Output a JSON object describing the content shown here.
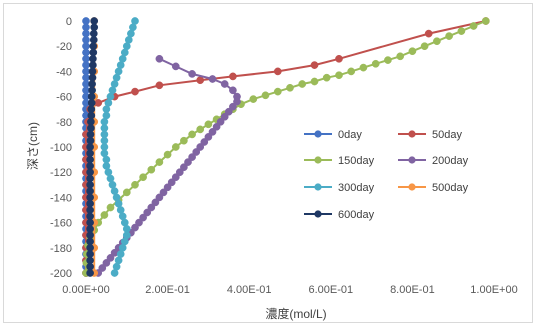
{
  "chart_data": {
    "type": "scatter",
    "xlabel": "濃度(mol/L)",
    "ylabel": "深さ(cm)",
    "xlim": [
      0,
      1.0
    ],
    "ylim": [
      -200,
      0
    ],
    "x_ticks": [
      "0.00E+00",
      "2.00E-01",
      "4.00E-01",
      "6.00E-01",
      "8.00E-01",
      "1.00E+00"
    ],
    "y_ticks": [
      "0",
      "-20",
      "-40",
      "-60",
      "-80",
      "-100",
      "-120",
      "-140",
      "-160",
      "-180",
      "-200"
    ],
    "grid": false,
    "legend_position": "right",
    "series": [
      {
        "name": "0day",
        "color": "#4472c4",
        "points": [
          [
            0,
            0
          ],
          [
            0,
            -5
          ],
          [
            0,
            -10
          ],
          [
            0,
            -15
          ],
          [
            0,
            -20
          ],
          [
            0,
            -25
          ],
          [
            0,
            -30
          ],
          [
            0,
            -35
          ],
          [
            0,
            -40
          ],
          [
            0,
            -45
          ],
          [
            0,
            -50
          ],
          [
            0,
            -55
          ],
          [
            0,
            -60
          ],
          [
            0,
            -65
          ],
          [
            0,
            -70
          ],
          [
            0,
            -75
          ],
          [
            0,
            -80
          ],
          [
            0,
            -85
          ],
          [
            0,
            -90
          ],
          [
            0,
            -95
          ],
          [
            0,
            -100
          ],
          [
            0,
            -105
          ],
          [
            0,
            -110
          ],
          [
            0,
            -115
          ],
          [
            0,
            -120
          ],
          [
            0,
            -125
          ],
          [
            0,
            -130
          ],
          [
            0,
            -135
          ],
          [
            0,
            -140
          ],
          [
            0,
            -145
          ],
          [
            0,
            -150
          ],
          [
            0,
            -155
          ],
          [
            0,
            -160
          ],
          [
            0,
            -165
          ],
          [
            0,
            -170
          ],
          [
            0,
            -175
          ],
          [
            0,
            -180
          ],
          [
            0,
            -185
          ],
          [
            0,
            -190
          ],
          [
            0,
            -195
          ],
          [
            0,
            -200
          ]
        ]
      },
      {
        "name": "50day",
        "color": "#c0504d",
        "points": [
          [
            0.98,
            0
          ],
          [
            0.84,
            -10
          ],
          [
            0.62,
            -30
          ],
          [
            0.56,
            -35
          ],
          [
            0.47,
            -40
          ],
          [
            0.36,
            -44
          ],
          [
            0.28,
            -47
          ],
          [
            0.18,
            -51
          ],
          [
            0.12,
            -56
          ],
          [
            0.07,
            -60
          ],
          [
            0.03,
            -65
          ],
          [
            0.01,
            -70
          ],
          [
            0.005,
            -80
          ],
          [
            0,
            -90
          ],
          [
            0,
            -100
          ],
          [
            0,
            -110
          ],
          [
            0,
            -120
          ],
          [
            0,
            -130
          ],
          [
            0,
            -140
          ],
          [
            0,
            -150
          ],
          [
            0,
            -160
          ],
          [
            0,
            -170
          ],
          [
            0,
            -180
          ],
          [
            0,
            -190
          ],
          [
            0,
            -200
          ]
        ]
      },
      {
        "name": "150day",
        "color": "#9bbb59",
        "points": [
          [
            0.98,
            0
          ],
          [
            0.95,
            -4
          ],
          [
            0.92,
            -8
          ],
          [
            0.89,
            -12
          ],
          [
            0.86,
            -16
          ],
          [
            0.83,
            -20
          ],
          [
            0.8,
            -24
          ],
          [
            0.77,
            -28
          ],
          [
            0.74,
            -31
          ],
          [
            0.71,
            -34
          ],
          [
            0.68,
            -37
          ],
          [
            0.65,
            -40
          ],
          [
            0.62,
            -43
          ],
          [
            0.59,
            -45
          ],
          [
            0.56,
            -48
          ],
          [
            0.53,
            -50
          ],
          [
            0.5,
            -53
          ],
          [
            0.47,
            -56
          ],
          [
            0.44,
            -59
          ],
          [
            0.41,
            -62
          ],
          [
            0.38,
            -66
          ],
          [
            0.36,
            -70
          ],
          [
            0.34,
            -74
          ],
          [
            0.32,
            -78
          ],
          [
            0.3,
            -82
          ],
          [
            0.28,
            -86
          ],
          [
            0.26,
            -90
          ],
          [
            0.24,
            -95
          ],
          [
            0.22,
            -100
          ],
          [
            0.2,
            -106
          ],
          [
            0.18,
            -112
          ],
          [
            0.16,
            -118
          ],
          [
            0.14,
            -124
          ],
          [
            0.12,
            -130
          ],
          [
            0.1,
            -136
          ],
          [
            0.08,
            -142
          ],
          [
            0.06,
            -148
          ],
          [
            0.045,
            -154
          ],
          [
            0.03,
            -160
          ],
          [
            0.02,
            -166
          ],
          [
            0.01,
            -172
          ],
          [
            0.005,
            -178
          ],
          [
            0.002,
            -185
          ],
          [
            0.001,
            -192
          ],
          [
            0,
            -200
          ]
        ]
      },
      {
        "name": "200day",
        "color": "#8064a2",
        "points": [
          [
            0.18,
            -30
          ],
          [
            0.22,
            -36
          ],
          [
            0.26,
            -42
          ],
          [
            0.31,
            -46
          ],
          [
            0.34,
            -50
          ],
          [
            0.36,
            -55
          ],
          [
            0.37,
            -60
          ],
          [
            0.37,
            -64
          ],
          [
            0.36,
            -68
          ],
          [
            0.35,
            -72
          ],
          [
            0.34,
            -76
          ],
          [
            0.33,
            -80
          ],
          [
            0.32,
            -84
          ],
          [
            0.31,
            -88
          ],
          [
            0.3,
            -92
          ],
          [
            0.29,
            -96
          ],
          [
            0.28,
            -100
          ],
          [
            0.27,
            -104
          ],
          [
            0.26,
            -108
          ],
          [
            0.25,
            -112
          ],
          [
            0.24,
            -116
          ],
          [
            0.23,
            -120
          ],
          [
            0.22,
            -124
          ],
          [
            0.21,
            -128
          ],
          [
            0.2,
            -132
          ],
          [
            0.19,
            -136
          ],
          [
            0.18,
            -140
          ],
          [
            0.17,
            -144
          ],
          [
            0.16,
            -148
          ],
          [
            0.15,
            -152
          ],
          [
            0.14,
            -156
          ],
          [
            0.13,
            -160
          ],
          [
            0.12,
            -164
          ],
          [
            0.11,
            -168
          ],
          [
            0.1,
            -172
          ],
          [
            0.09,
            -176
          ],
          [
            0.08,
            -180
          ],
          [
            0.07,
            -184
          ],
          [
            0.06,
            -188
          ],
          [
            0.05,
            -192
          ],
          [
            0.04,
            -196
          ],
          [
            0.03,
            -200
          ]
        ]
      },
      {
        "name": "300day",
        "color": "#4bacc6",
        "points": [
          [
            0.12,
            0
          ],
          [
            0.115,
            -5
          ],
          [
            0.11,
            -10
          ],
          [
            0.105,
            -15
          ],
          [
            0.1,
            -20
          ],
          [
            0.095,
            -25
          ],
          [
            0.09,
            -30
          ],
          [
            0.085,
            -35
          ],
          [
            0.08,
            -40
          ],
          [
            0.075,
            -45
          ],
          [
            0.07,
            -50
          ],
          [
            0.065,
            -55
          ],
          [
            0.06,
            -60
          ],
          [
            0.055,
            -65
          ],
          [
            0.05,
            -70
          ],
          [
            0.05,
            -75
          ],
          [
            0.045,
            -80
          ],
          [
            0.045,
            -85
          ],
          [
            0.045,
            -90
          ],
          [
            0.045,
            -95
          ],
          [
            0.045,
            -100
          ],
          [
            0.045,
            -105
          ],
          [
            0.05,
            -110
          ],
          [
            0.05,
            -115
          ],
          [
            0.055,
            -120
          ],
          [
            0.06,
            -125
          ],
          [
            0.065,
            -130
          ],
          [
            0.07,
            -135
          ],
          [
            0.075,
            -140
          ],
          [
            0.08,
            -145
          ],
          [
            0.085,
            -150
          ],
          [
            0.09,
            -155
          ],
          [
            0.095,
            -160
          ],
          [
            0.1,
            -165
          ],
          [
            0.1,
            -170
          ],
          [
            0.095,
            -175
          ],
          [
            0.09,
            -180
          ],
          [
            0.085,
            -185
          ],
          [
            0.08,
            -190
          ],
          [
            0.075,
            -195
          ],
          [
            0.07,
            -200
          ]
        ]
      },
      {
        "name": "500day",
        "color": "#f79646",
        "points": [
          [
            0.02,
            0
          ],
          [
            0.02,
            -20
          ],
          [
            0.02,
            -40
          ],
          [
            0.02,
            -60
          ],
          [
            0.02,
            -80
          ],
          [
            0.02,
            -100
          ],
          [
            0.02,
            -120
          ],
          [
            0.02,
            -140
          ],
          [
            0.02,
            -160
          ],
          [
            0.02,
            -180
          ],
          [
            0.02,
            -200
          ]
        ]
      },
      {
        "name": "600day",
        "color": "#1f3864",
        "points": [
          [
            0.02,
            0
          ],
          [
            0.02,
            -5
          ],
          [
            0.019,
            -10
          ],
          [
            0.019,
            -15
          ],
          [
            0.018,
            -20
          ],
          [
            0.018,
            -25
          ],
          [
            0.017,
            -30
          ],
          [
            0.017,
            -35
          ],
          [
            0.016,
            -40
          ],
          [
            0.016,
            -45
          ],
          [
            0.015,
            -50
          ],
          [
            0.015,
            -55
          ],
          [
            0.014,
            -60
          ],
          [
            0.014,
            -65
          ],
          [
            0.013,
            -70
          ],
          [
            0.013,
            -75
          ],
          [
            0.012,
            -80
          ],
          [
            0.012,
            -85
          ],
          [
            0.011,
            -90
          ],
          [
            0.011,
            -95
          ],
          [
            0.01,
            -100
          ],
          [
            0.01,
            -105
          ],
          [
            0.01,
            -110
          ],
          [
            0.01,
            -115
          ],
          [
            0.01,
            -120
          ],
          [
            0.01,
            -125
          ],
          [
            0.01,
            -130
          ],
          [
            0.01,
            -135
          ],
          [
            0.01,
            -140
          ],
          [
            0.01,
            -145
          ],
          [
            0.01,
            -150
          ],
          [
            0.01,
            -155
          ],
          [
            0.01,
            -160
          ],
          [
            0.01,
            -165
          ],
          [
            0.01,
            -170
          ],
          [
            0.01,
            -175
          ],
          [
            0.01,
            -180
          ],
          [
            0.01,
            -185
          ],
          [
            0.01,
            -190
          ],
          [
            0.01,
            -195
          ],
          [
            0.01,
            -200
          ]
        ]
      }
    ]
  }
}
